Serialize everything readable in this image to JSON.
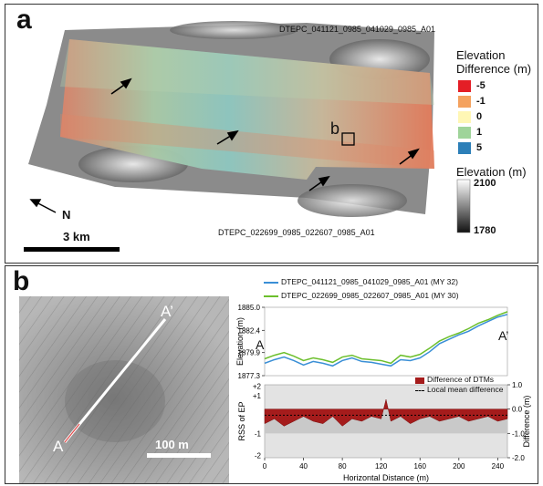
{
  "panel_a": {
    "label": "a",
    "strip_label_top": "DTEPC_041121_0985_041029_0985_A01",
    "strip_label_bottom": "DTEPC_022699_0985_022607_0985_A01",
    "box_label": "b",
    "north_label": "N",
    "scale_label": "3 km",
    "legend_diff": {
      "title_line1": "Elevation",
      "title_line2": "Difference (m)",
      "items": [
        {
          "label": "-5",
          "color": "#e41e26"
        },
        {
          "label": "-1",
          "color": "#f4a25f"
        },
        {
          "label": "0",
          "color": "#fff7b5"
        },
        {
          "label": "1",
          "color": "#9fd49a"
        },
        {
          "label": "5",
          "color": "#2c7fb8"
        }
      ]
    },
    "legend_elev": {
      "title": "Elevation (m)",
      "max": "2100",
      "min": "1780"
    }
  },
  "panel_b": {
    "label": "b",
    "point_a": "A",
    "point_a_prime": "A’",
    "scale_label": "100 m",
    "top_chart_labels": {
      "start": "A",
      "end": "A’"
    },
    "legend_series": [
      {
        "name": "DTEPC_041121_0985_041029_0985_A01 (MY 32)",
        "color": "#3a8fd6"
      },
      {
        "name": "DTEPC_022699_0985_022607_0985_A01 (MY 30)",
        "color": "#6cbf2c"
      }
    ],
    "bottom_legend": {
      "bar": "Difference of DTMs",
      "line": "Local mean difference"
    }
  },
  "chart_data": [
    {
      "type": "line",
      "ylabel": "Elevation (m)",
      "ylim": [
        1877.3,
        1885.0
      ],
      "yticks": [
        "1885.0",
        "1882.4",
        "1879.9",
        "1877.3"
      ],
      "xlim": [
        0,
        250
      ],
      "series": [
        {
          "name": "DTEPC_041121_0985_041029_0985_A01 (MY 32)",
          "x": [
            0,
            10,
            20,
            30,
            40,
            50,
            60,
            70,
            80,
            90,
            100,
            110,
            120,
            130,
            140,
            150,
            160,
            170,
            180,
            190,
            200,
            210,
            220,
            230,
            240,
            250
          ],
          "y": [
            1878.7,
            1879.1,
            1879.4,
            1879.0,
            1878.5,
            1878.9,
            1878.7,
            1878.4,
            1879.0,
            1879.3,
            1878.9,
            1878.8,
            1878.6,
            1878.4,
            1879.1,
            1879.0,
            1879.3,
            1880.0,
            1880.9,
            1881.4,
            1881.9,
            1882.3,
            1882.9,
            1883.4,
            1883.9,
            1884.2
          ]
        },
        {
          "name": "DTEPC_022699_0985_022607_0985_A01 (MY 30)",
          "x": [
            0,
            10,
            20,
            30,
            40,
            50,
            60,
            70,
            80,
            90,
            100,
            110,
            120,
            130,
            140,
            150,
            160,
            170,
            180,
            190,
            200,
            210,
            220,
            230,
            240,
            250
          ],
          "y": [
            1879.2,
            1879.6,
            1879.9,
            1879.5,
            1879.0,
            1879.3,
            1879.1,
            1878.8,
            1879.4,
            1879.6,
            1879.2,
            1879.1,
            1879.0,
            1878.7,
            1879.6,
            1879.4,
            1879.7,
            1880.4,
            1881.2,
            1881.7,
            1882.1,
            1882.6,
            1883.2,
            1883.6,
            1884.1,
            1884.5
          ]
        }
      ]
    },
    {
      "type": "area",
      "xlabel": "Horizontal Distance (m)",
      "ylabel_left": "RSS of EP",
      "ylabel_right": "Difference (m)",
      "xlim": [
        0,
        250
      ],
      "xticks": [
        "0",
        "40",
        "80",
        "120",
        "160",
        "200",
        "240"
      ],
      "ylim": [
        -2.0,
        1.0
      ],
      "left_ticks": [
        "+2",
        "+1",
        "-1",
        "-2"
      ],
      "right_ticks": [
        "1.0",
        "0.0",
        "-1.0",
        "-2.0"
      ],
      "local_mean": -0.25,
      "series": [
        {
          "name": "Difference of DTMs",
          "x": [
            0,
            10,
            20,
            30,
            40,
            50,
            60,
            70,
            80,
            90,
            100,
            110,
            120,
            125,
            130,
            140,
            150,
            160,
            170,
            180,
            190,
            200,
            210,
            220,
            230,
            240,
            250
          ],
          "y": [
            -0.6,
            -0.4,
            -0.7,
            -0.5,
            -0.3,
            -0.5,
            -0.6,
            -0.3,
            -0.7,
            -0.4,
            -0.5,
            -0.3,
            -0.4,
            0.4,
            -0.5,
            -0.3,
            -0.6,
            -0.4,
            -0.3,
            -0.5,
            -0.4,
            -0.3,
            -0.5,
            -0.4,
            -0.3,
            -0.5,
            -0.4
          ]
        }
      ]
    }
  ]
}
